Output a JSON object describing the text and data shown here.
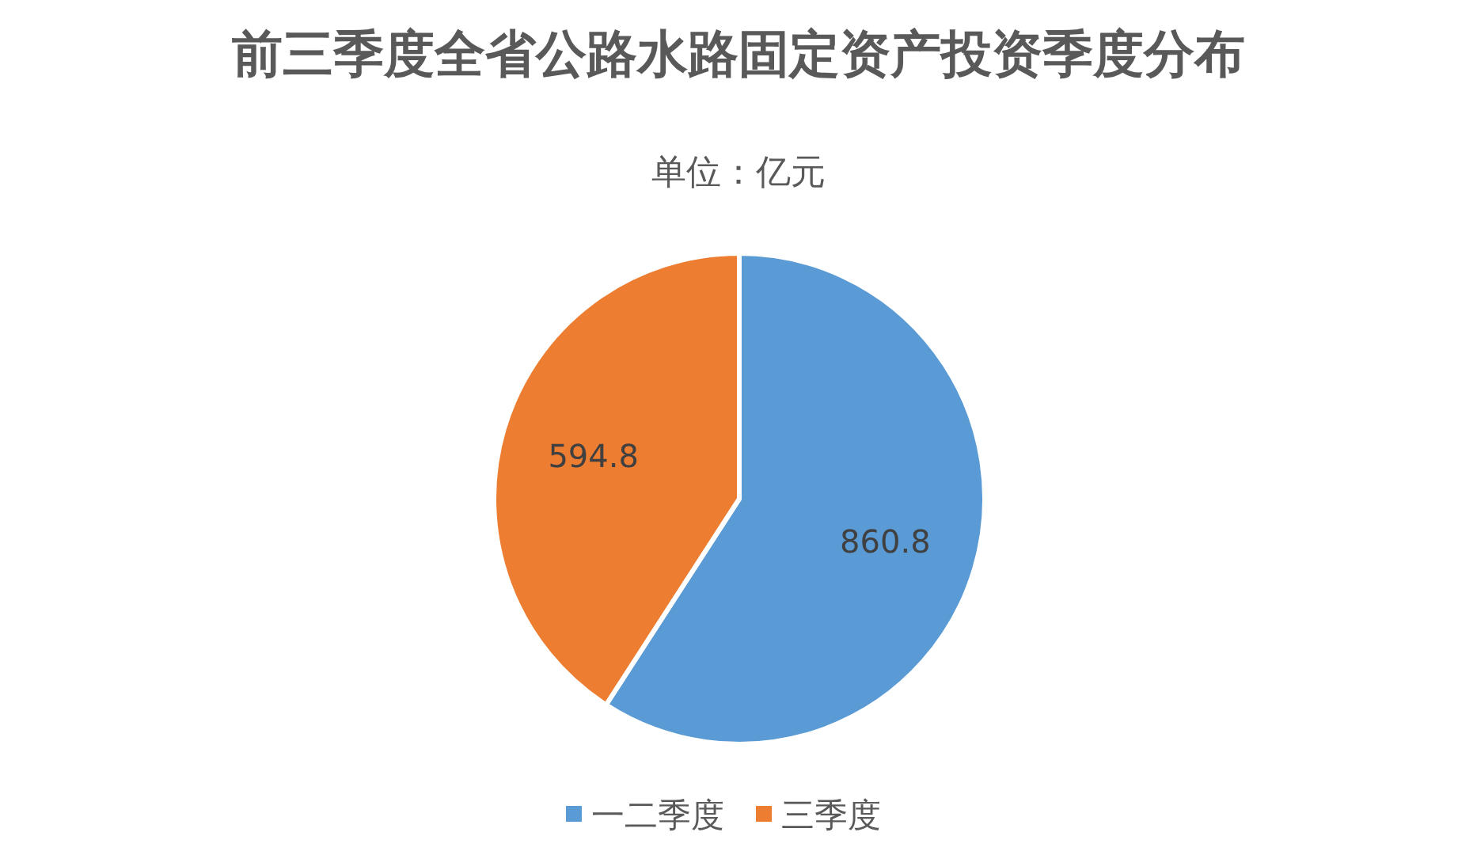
{
  "chart_data": {
    "type": "pie",
    "title": "前三季度全省公路水路固定资产投资季度分布",
    "subtitle": "单位：亿元",
    "categories": [
      "一二季度",
      "三季度"
    ],
    "values": [
      860.8,
      594.8
    ],
    "colors": [
      "#5b9bd5",
      "#ed7d31"
    ],
    "data_labels": true,
    "legend": "bottom"
  }
}
